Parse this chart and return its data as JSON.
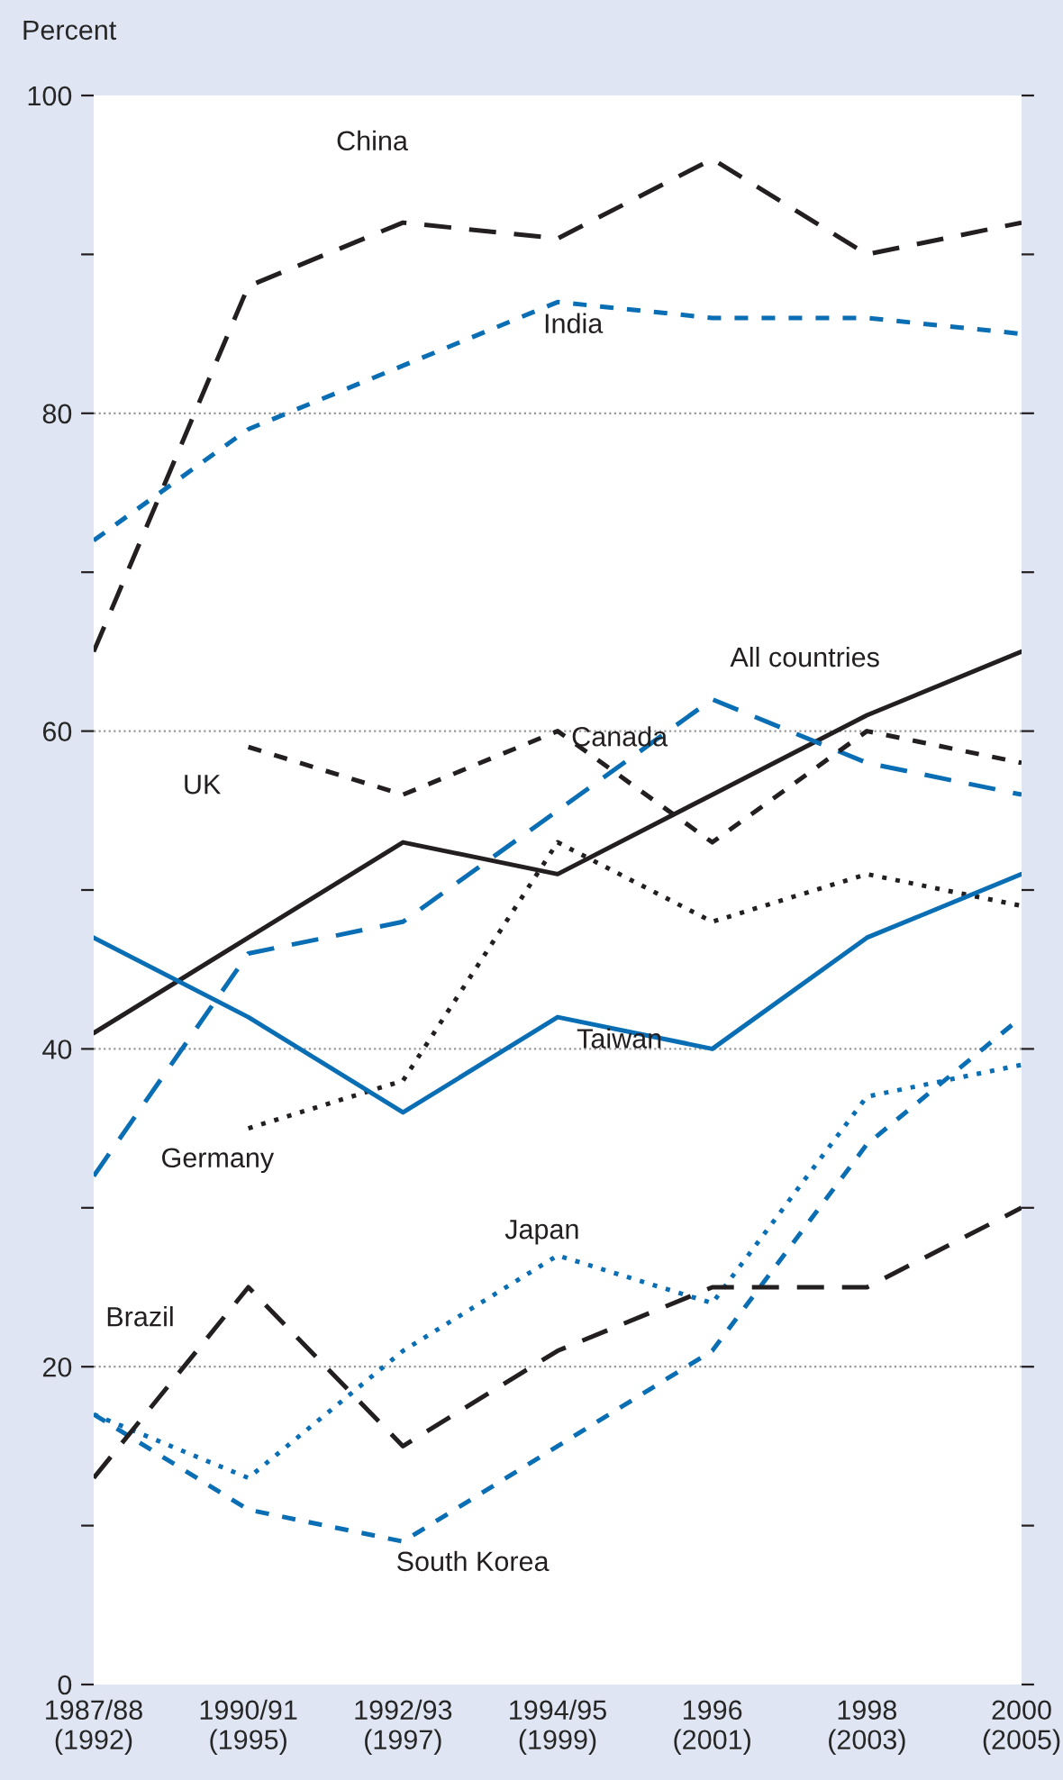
{
  "chart_data": {
    "type": "line",
    "ylabel": "Percent",
    "categories": [
      "1987/88\n(1992)",
      "1990/91\n(1995)",
      "1992/93\n(1997)",
      "1994/95\n(1999)",
      "1996\n(2001)",
      "1998\n(2003)",
      "2000\n(2005)"
    ],
    "ylim": [
      0,
      100
    ],
    "yticks": [
      0,
      {
        "value": 10,
        "label": null
      },
      20,
      {
        "value": 30,
        "label": null
      },
      40,
      {
        "value": 50,
        "label": null
      },
      60,
      {
        "value": 70,
        "label": null
      },
      80,
      {
        "value": 90,
        "label": null
      },
      100
    ],
    "grid": "y",
    "legend": false,
    "marker": "none",
    "series": [
      {
        "name": "China",
        "color": "#231f20",
        "line_style": "dashed",
        "values": [
          65,
          88,
          92,
          91,
          96,
          90,
          92
        ]
      },
      {
        "name": "India",
        "color": "#0a6eb4",
        "line_style": "dashed",
        "values": [
          72,
          79,
          83,
          87,
          86,
          86,
          85
        ]
      },
      {
        "name": "All countries",
        "color": "#231f20",
        "line_style": "solid",
        "values": [
          41,
          47,
          53,
          51,
          56,
          61,
          65
        ]
      },
      {
        "name": "Canada",
        "color": "#0a6eb4",
        "line_style": "dashed",
        "values": [
          32,
          46,
          48,
          55,
          62,
          58,
          56
        ]
      },
      {
        "name": "UK",
        "color": "#231f20",
        "line_style": "dashed",
        "values": [
          null,
          59,
          56,
          60,
          53,
          60,
          58
        ]
      },
      {
        "name": "Germany",
        "color": "#231f20",
        "line_style": "dotted",
        "values": [
          null,
          35,
          38,
          53,
          48,
          51,
          49
        ]
      },
      {
        "name": "Taiwan",
        "color": "#0a6eb4",
        "line_style": "solid",
        "values": [
          47,
          42,
          36,
          42,
          40,
          47,
          51
        ]
      },
      {
        "name": "Japan",
        "color": "#0a6eb4",
        "line_style": "dotted",
        "values": [
          17,
          13,
          21,
          27,
          24,
          37,
          39
        ]
      },
      {
        "name": "South Korea",
        "color": "#0a6eb4",
        "line_style": "dashed",
        "values": [
          17,
          11,
          9,
          15,
          21,
          34,
          42
        ]
      },
      {
        "name": "Brazil",
        "color": "#231f20",
        "line_style": "dashed",
        "values": [
          13,
          25,
          15,
          21,
          25,
          25,
          30
        ]
      }
    ]
  }
}
